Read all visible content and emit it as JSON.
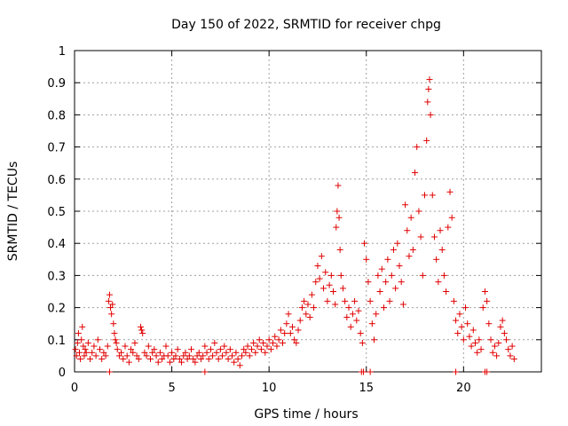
{
  "chart_data": {
    "type": "scatter",
    "title": "Day 150 of 2022, SRMTID for receiver chpg",
    "xlabel": "GPS time / hours",
    "ylabel": "SRMTID / TECUs",
    "xlim": [
      0,
      24
    ],
    "ylim": [
      0,
      1
    ],
    "xticks": [
      0,
      5,
      10,
      15,
      20
    ],
    "xtick_labels": [
      "0",
      "5",
      "10",
      "15",
      "20"
    ],
    "yticks": [
      0,
      0.1,
      0.2,
      0.3,
      0.4,
      0.5,
      0.6,
      0.7,
      0.8,
      0.9,
      1
    ],
    "ytick_labels": [
      "0",
      "0.1",
      "0.2",
      "0.3",
      "0.4",
      "0.5",
      "0.6",
      "0.7",
      "0.8",
      "0.9",
      "1"
    ],
    "grid": true,
    "marker": "+",
    "series": [
      {
        "name": "SRMTID",
        "color": "#e00000",
        "points": [
          [
            0.05,
            0.07
          ],
          [
            0.1,
            0.05
          ],
          [
            0.15,
            0.09
          ],
          [
            0.2,
            0.12
          ],
          [
            0.25,
            0.06
          ],
          [
            0.3,
            0.04
          ],
          [
            0.35,
            0.1
          ],
          [
            0.4,
            0.14
          ],
          [
            0.45,
            0.08
          ],
          [
            0.5,
            0.05
          ],
          [
            0.55,
            0.07
          ],
          [
            0.6,
            0.06
          ],
          [
            0.7,
            0.09
          ],
          [
            0.8,
            0.04
          ],
          [
            0.9,
            0.06
          ],
          [
            1.0,
            0.08
          ],
          [
            1.1,
            0.05
          ],
          [
            1.2,
            0.1
          ],
          [
            1.3,
            0.07
          ],
          [
            1.4,
            0.04
          ],
          [
            1.5,
            0.06
          ],
          [
            1.6,
            0.05
          ],
          [
            1.7,
            0.08
          ],
          [
            1.75,
            0.22
          ],
          [
            1.8,
            0.24
          ],
          [
            1.85,
            0.2
          ],
          [
            1.9,
            0.18
          ],
          [
            1.95,
            0.21
          ],
          [
            2.0,
            0.15
          ],
          [
            2.05,
            0.12
          ],
          [
            2.1,
            0.1
          ],
          [
            2.15,
            0.09
          ],
          [
            2.2,
            0.07
          ],
          [
            2.3,
            0.05
          ],
          [
            2.4,
            0.06
          ],
          [
            2.5,
            0.04
          ],
          [
            2.6,
            0.08
          ],
          [
            2.7,
            0.05
          ],
          [
            2.8,
            0.03
          ],
          [
            2.9,
            0.07
          ],
          [
            3.0,
            0.06
          ],
          [
            3.1,
            0.09
          ],
          [
            3.2,
            0.05
          ],
          [
            3.3,
            0.04
          ],
          [
            3.4,
            0.14
          ],
          [
            3.45,
            0.13
          ],
          [
            3.5,
            0.12
          ],
          [
            3.6,
            0.06
          ],
          [
            3.7,
            0.05
          ],
          [
            3.8,
            0.08
          ],
          [
            3.9,
            0.04
          ],
          [
            4.0,
            0.06
          ],
          [
            4.1,
            0.07
          ],
          [
            4.2,
            0.05
          ],
          [
            4.3,
            0.03
          ],
          [
            4.4,
            0.06
          ],
          [
            4.5,
            0.04
          ],
          [
            4.6,
            0.05
          ],
          [
            4.7,
            0.08
          ],
          [
            4.8,
            0.05
          ],
          [
            4.9,
            0.03
          ],
          [
            5.0,
            0.06
          ],
          [
            5.1,
            0.04
          ],
          [
            5.2,
            0.05
          ],
          [
            5.3,
            0.07
          ],
          [
            5.4,
            0.04
          ],
          [
            5.5,
            0.03
          ],
          [
            5.6,
            0.05
          ],
          [
            5.7,
            0.06
          ],
          [
            5.8,
            0.04
          ],
          [
            5.9,
            0.05
          ],
          [
            6.0,
            0.07
          ],
          [
            6.1,
            0.04
          ],
          [
            6.2,
            0.03
          ],
          [
            6.3,
            0.05
          ],
          [
            6.4,
            0.06
          ],
          [
            6.5,
            0.04
          ],
          [
            6.6,
            0.05
          ],
          [
            6.7,
            0.08
          ],
          [
            6.8,
            0.06
          ],
          [
            6.9,
            0.04
          ],
          [
            7.0,
            0.07
          ],
          [
            7.1,
            0.05
          ],
          [
            7.2,
            0.09
          ],
          [
            7.3,
            0.06
          ],
          [
            7.4,
            0.04
          ],
          [
            7.5,
            0.07
          ],
          [
            7.6,
            0.05
          ],
          [
            7.7,
            0.08
          ],
          [
            7.8,
            0.06
          ],
          [
            7.9,
            0.04
          ],
          [
            8.0,
            0.07
          ],
          [
            8.1,
            0.05
          ],
          [
            8.2,
            0.03
          ],
          [
            8.3,
            0.06
          ],
          [
            8.4,
            0.04
          ],
          [
            8.5,
            0.02
          ],
          [
            8.6,
            0.05
          ],
          [
            8.7,
            0.07
          ],
          [
            8.8,
            0.06
          ],
          [
            8.9,
            0.08
          ],
          [
            9.0,
            0.05
          ],
          [
            9.1,
            0.07
          ],
          [
            9.2,
            0.09
          ],
          [
            9.3,
            0.06
          ],
          [
            9.4,
            0.08
          ],
          [
            9.5,
            0.1
          ],
          [
            9.6,
            0.07
          ],
          [
            9.7,
            0.09
          ],
          [
            9.8,
            0.06
          ],
          [
            9.9,
            0.08
          ],
          [
            10.0,
            0.1
          ],
          [
            10.1,
            0.07
          ],
          [
            10.2,
            0.09
          ],
          [
            10.3,
            0.11
          ],
          [
            10.4,
            0.08
          ],
          [
            10.5,
            0.1
          ],
          [
            10.6,
            0.13
          ],
          [
            10.7,
            0.09
          ],
          [
            10.8,
            0.12
          ],
          [
            10.9,
            0.15
          ],
          [
            11.0,
            0.18
          ],
          [
            11.1,
            0.12
          ],
          [
            11.2,
            0.14
          ],
          [
            11.3,
            0.1
          ],
          [
            11.4,
            0.09
          ],
          [
            11.5,
            0.13
          ],
          [
            11.6,
            0.16
          ],
          [
            11.7,
            0.2
          ],
          [
            11.8,
            0.22
          ],
          [
            11.9,
            0.18
          ],
          [
            12.0,
            0.21
          ],
          [
            12.1,
            0.17
          ],
          [
            12.2,
            0.24
          ],
          [
            12.3,
            0.2
          ],
          [
            12.4,
            0.28
          ],
          [
            12.5,
            0.33
          ],
          [
            12.6,
            0.29
          ],
          [
            12.7,
            0.36
          ],
          [
            12.8,
            0.26
          ],
          [
            12.9,
            0.31
          ],
          [
            13.0,
            0.22
          ],
          [
            13.1,
            0.27
          ],
          [
            13.2,
            0.3
          ],
          [
            13.3,
            0.25
          ],
          [
            13.4,
            0.21
          ],
          [
            13.45,
            0.45
          ],
          [
            13.5,
            0.5
          ],
          [
            13.55,
            0.58
          ],
          [
            13.6,
            0.48
          ],
          [
            13.65,
            0.38
          ],
          [
            13.7,
            0.3
          ],
          [
            13.8,
            0.26
          ],
          [
            13.9,
            0.22
          ],
          [
            14.0,
            0.17
          ],
          [
            14.1,
            0.2
          ],
          [
            14.2,
            0.14
          ],
          [
            14.3,
            0.18
          ],
          [
            14.4,
            0.22
          ],
          [
            14.5,
            0.16
          ],
          [
            14.6,
            0.19
          ],
          [
            14.7,
            0.12
          ],
          [
            14.8,
            0.09
          ],
          [
            14.9,
            0.4
          ],
          [
            15.0,
            0.35
          ],
          [
            15.1,
            0.28
          ],
          [
            15.2,
            0.22
          ],
          [
            15.3,
            0.15
          ],
          [
            15.4,
            0.1
          ],
          [
            15.5,
            0.18
          ],
          [
            15.6,
            0.3
          ],
          [
            15.7,
            0.25
          ],
          [
            15.8,
            0.32
          ],
          [
            15.9,
            0.2
          ],
          [
            16.0,
            0.28
          ],
          [
            16.1,
            0.35
          ],
          [
            16.2,
            0.22
          ],
          [
            16.3,
            0.3
          ],
          [
            16.4,
            0.38
          ],
          [
            16.5,
            0.26
          ],
          [
            16.6,
            0.4
          ],
          [
            16.7,
            0.33
          ],
          [
            16.8,
            0.28
          ],
          [
            16.9,
            0.21
          ],
          [
            17.0,
            0.52
          ],
          [
            17.1,
            0.44
          ],
          [
            17.2,
            0.36
          ],
          [
            17.3,
            0.48
          ],
          [
            17.4,
            0.38
          ],
          [
            17.5,
            0.62
          ],
          [
            17.6,
            0.7
          ],
          [
            17.7,
            0.5
          ],
          [
            17.8,
            0.42
          ],
          [
            17.9,
            0.3
          ],
          [
            18.0,
            0.55
          ],
          [
            18.1,
            0.72
          ],
          [
            18.15,
            0.84
          ],
          [
            18.2,
            0.88
          ],
          [
            18.25,
            0.91
          ],
          [
            18.3,
            0.8
          ],
          [
            18.4,
            0.55
          ],
          [
            18.5,
            0.42
          ],
          [
            18.6,
            0.35
          ],
          [
            18.7,
            0.28
          ],
          [
            18.8,
            0.44
          ],
          [
            18.9,
            0.38
          ],
          [
            19.0,
            0.3
          ],
          [
            19.1,
            0.25
          ],
          [
            19.2,
            0.45
          ],
          [
            19.3,
            0.56
          ],
          [
            19.4,
            0.48
          ],
          [
            19.5,
            0.22
          ],
          [
            19.6,
            0.16
          ],
          [
            19.7,
            0.12
          ],
          [
            19.8,
            0.18
          ],
          [
            19.9,
            0.14
          ],
          [
            20.0,
            0.1
          ],
          [
            20.1,
            0.2
          ],
          [
            20.2,
            0.15
          ],
          [
            20.3,
            0.11
          ],
          [
            20.4,
            0.08
          ],
          [
            20.5,
            0.13
          ],
          [
            20.6,
            0.09
          ],
          [
            20.7,
            0.06
          ],
          [
            20.8,
            0.1
          ],
          [
            20.9,
            0.07
          ],
          [
            21.0,
            0.2
          ],
          [
            21.1,
            0.25
          ],
          [
            21.2,
            0.22
          ],
          [
            21.3,
            0.15
          ],
          [
            21.4,
            0.1
          ],
          [
            21.5,
            0.06
          ],
          [
            21.6,
            0.08
          ],
          [
            21.7,
            0.05
          ],
          [
            21.8,
            0.09
          ],
          [
            21.9,
            0.14
          ],
          [
            22.0,
            0.16
          ],
          [
            22.1,
            0.12
          ],
          [
            22.2,
            0.1
          ],
          [
            22.3,
            0.07
          ],
          [
            22.4,
            0.05
          ],
          [
            22.5,
            0.08
          ],
          [
            22.6,
            0.04
          ],
          [
            1.8,
            0.0
          ],
          [
            14.75,
            0.0
          ],
          [
            14.85,
            0.0
          ],
          [
            15.2,
            0.0
          ],
          [
            19.6,
            0.0
          ],
          [
            21.1,
            0.0
          ],
          [
            21.2,
            0.0
          ],
          [
            6.7,
            0.0
          ]
        ]
      }
    ]
  }
}
